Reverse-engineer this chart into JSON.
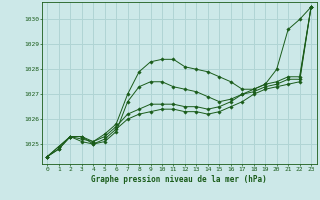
{
  "title": "Graphe pression niveau de la mer (hPa)",
  "bg_color": "#cce8e8",
  "grid_color": "#b0d4d4",
  "line_color": "#1a5c1a",
  "marker_color": "#1a5c1a",
  "x_ticks": [
    0,
    1,
    2,
    3,
    4,
    5,
    6,
    7,
    8,
    9,
    10,
    11,
    12,
    13,
    14,
    15,
    16,
    17,
    18,
    19,
    20,
    21,
    22,
    23
  ],
  "y_ticks": [
    1025,
    1026,
    1027,
    1028,
    1029,
    1030
  ],
  "ylim": [
    1024.2,
    1030.7
  ],
  "xlim": [
    -0.5,
    23.5
  ],
  "series": [
    [
      1024.5,
      1024.8,
      1025.3,
      1025.3,
      1025.0,
      1025.1,
      1025.5,
      1026.7,
      1027.3,
      1027.5,
      1027.5,
      1027.3,
      1027.2,
      1027.1,
      1026.9,
      1026.7,
      1026.8,
      1027.0,
      1027.2,
      1027.4,
      1027.5,
      1027.7,
      1027.7,
      1030.5
    ],
    [
      1024.5,
      1024.8,
      1025.3,
      1025.3,
      1025.1,
      1025.4,
      1025.8,
      1027.0,
      1027.9,
      1028.3,
      1028.4,
      1028.4,
      1028.1,
      1028.0,
      1027.9,
      1027.7,
      1027.5,
      1027.2,
      1027.2,
      1027.4,
      1028.0,
      1029.6,
      1030.0,
      1030.5
    ],
    [
      1024.5,
      1024.9,
      1025.3,
      1025.2,
      1025.1,
      1025.3,
      1025.7,
      1026.2,
      1026.4,
      1026.6,
      1026.6,
      1026.6,
      1026.5,
      1026.5,
      1026.4,
      1026.5,
      1026.7,
      1027.0,
      1027.1,
      1027.3,
      1027.4,
      1027.6,
      1027.6,
      1030.5
    ],
    [
      1024.5,
      1024.9,
      1025.3,
      1025.1,
      1025.0,
      1025.2,
      1025.6,
      1026.0,
      1026.2,
      1026.3,
      1026.4,
      1026.4,
      1026.3,
      1026.3,
      1026.2,
      1026.3,
      1026.5,
      1026.7,
      1027.0,
      1027.2,
      1027.3,
      1027.4,
      1027.5,
      1030.5
    ]
  ]
}
